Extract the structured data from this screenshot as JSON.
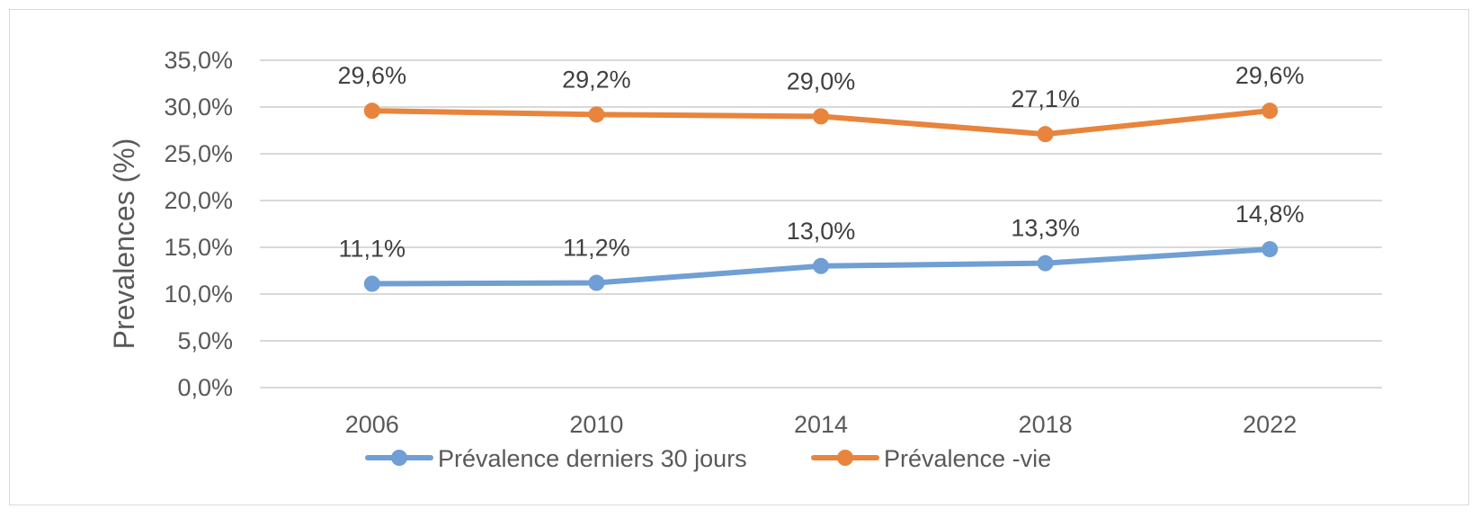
{
  "chart_data": {
    "type": "line",
    "title": "",
    "xlabel": "",
    "ylabel": "Prevalences (%)",
    "categories": [
      "2006",
      "2010",
      "2014",
      "2018",
      "2022"
    ],
    "ylim": [
      0,
      35
    ],
    "y_ticks": [
      0,
      5,
      10,
      15,
      20,
      25,
      30,
      35
    ],
    "y_tick_labels": [
      "0,0%",
      "5,0%",
      "10,0%",
      "15,0%",
      "20,0%",
      "25,0%",
      "30,0%",
      "35,0%"
    ],
    "grid": true,
    "legend_position": "bottom",
    "series": [
      {
        "name": "Prévalence derniers 30 jours",
        "color": "#6f9fd4",
        "values": [
          11.1,
          11.2,
          13.0,
          13.3,
          14.8
        ],
        "labels": [
          "11,1%",
          "11,2%",
          "13,0%",
          "13,3%",
          "14,8%"
        ]
      },
      {
        "name": "Prévalence -vie",
        "color": "#e8843c",
        "values": [
          29.6,
          29.2,
          29.0,
          27.1,
          29.6
        ],
        "labels": [
          "29,6%",
          "29,2%",
          "29,0%",
          "27,1%",
          "29,6%"
        ]
      }
    ]
  }
}
